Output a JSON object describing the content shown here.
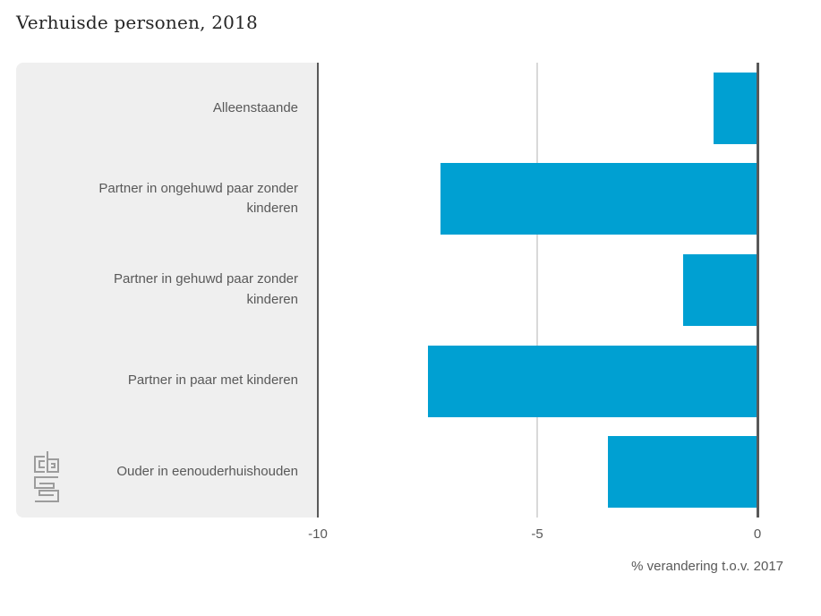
{
  "page": {
    "title": "Verhuisde personen, 2018"
  },
  "chart_data": {
    "type": "bar",
    "orientation": "horizontal",
    "title": "Verhuisde personen, 2018",
    "categories": [
      "Alleenstaande",
      "Partner in ongehuwd paar zonder kinderen",
      "Partner in gehuwd paar zonder kinderen",
      "Partner in paar met kinderen",
      "Ouder in eenouderhuishouden"
    ],
    "values": [
      -1.0,
      -7.2,
      -1.7,
      -7.5,
      -3.4
    ],
    "xlabel": "% verandering t.o.v. 2017",
    "ylabel": "",
    "xlim": [
      -10,
      0
    ],
    "xticks": [
      "-10",
      "-5",
      "0"
    ],
    "grid": "vertical gridline at -5, axis lines at -10 and 0",
    "legend": "none",
    "colors": {
      "bar": "#00a0d2",
      "label_panel_bg": "#efefef",
      "axis_line": "#595959",
      "gridline": "#d9d9d9",
      "text": "#595959",
      "title_text": "#262626",
      "logo": "#9c9c9c"
    },
    "branding": {
      "logo_icon": "cbs-logo"
    }
  }
}
